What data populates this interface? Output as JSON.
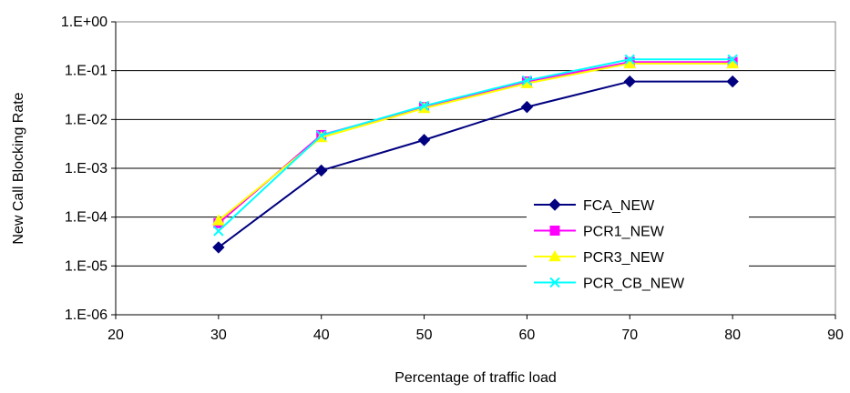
{
  "chart_data": {
    "type": "line",
    "xlabel": "Percentage of traffic load",
    "ylabel": "New Call Blocking Rate",
    "xlim": [
      20,
      90
    ],
    "xticks": [
      20,
      30,
      40,
      50,
      60,
      70,
      80,
      90
    ],
    "ylim": [
      1e-06,
      1
    ],
    "yscale": "log",
    "ytick_values": [
      1e-06,
      1e-05,
      0.0001,
      0.001,
      0.01,
      0.1,
      1
    ],
    "ytick_labels": [
      "1.E-06",
      "1.E-05",
      "1.E-04",
      "1.E-03",
      "1.E-02",
      "1.E-01",
      "1.E+00"
    ],
    "grid": "horizontal",
    "legend_position": "lower-right",
    "x": [
      30,
      40,
      50,
      60,
      70,
      80
    ],
    "series": [
      {
        "name": "FCA_NEW",
        "color": "#000080",
        "marker": "diamond",
        "values": [
          2.4e-05,
          0.0009,
          0.0038,
          0.018,
          0.06,
          0.06
        ]
      },
      {
        "name": "PCR1_NEW",
        "color": "#ff00ff",
        "marker": "square",
        "values": [
          7.5e-05,
          0.0048,
          0.018,
          0.06,
          0.15,
          0.15
        ]
      },
      {
        "name": "PCR3_NEW",
        "color": "#ffff00",
        "marker": "triangle",
        "values": [
          8.5e-05,
          0.0043,
          0.017,
          0.055,
          0.14,
          0.14
        ]
      },
      {
        "name": "PCR_CB_NEW",
        "color": "#00ffff",
        "marker": "x",
        "values": [
          5.2e-05,
          0.0047,
          0.019,
          0.063,
          0.17,
          0.17
        ]
      }
    ]
  }
}
